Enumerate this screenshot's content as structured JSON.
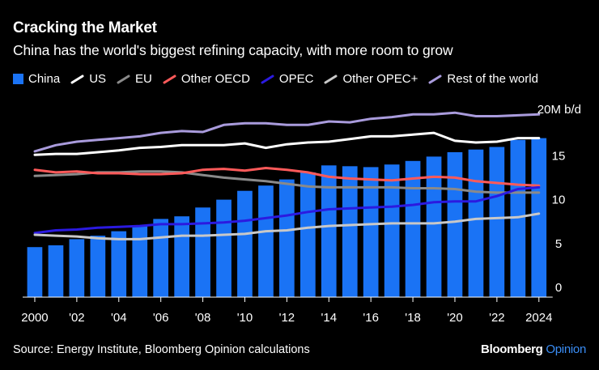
{
  "title": "Cracking the Market",
  "subtitle": "China has the world's biggest refining capacity, with more room to grow",
  "source": "Source: Energy Institute, Bloomberg Opinion calculations",
  "brand": {
    "name": "Bloomberg",
    "suffix": "Opinion"
  },
  "chart_data": {
    "type": "bar+line",
    "unit_label": "20M b/d",
    "ylim": [
      0,
      20
    ],
    "y_ticks": [
      {
        "value": 0,
        "label": "0"
      },
      {
        "value": 5,
        "label": "5"
      },
      {
        "value": 10,
        "label": "10"
      },
      {
        "value": 15,
        "label": "15"
      },
      {
        "value": 20,
        "label": "20M b/d"
      }
    ],
    "x": [
      2000,
      2001,
      2002,
      2003,
      2004,
      2005,
      2006,
      2007,
      2008,
      2009,
      2010,
      2011,
      2012,
      2013,
      2014,
      2015,
      2016,
      2017,
      2018,
      2019,
      2020,
      2021,
      2022,
      2023,
      2024
    ],
    "x_ticks": [
      {
        "value": 2000,
        "label": "2000"
      },
      {
        "value": 2002,
        "label": "'02"
      },
      {
        "value": 2004,
        "label": "'04"
      },
      {
        "value": 2006,
        "label": "'06"
      },
      {
        "value": 2008,
        "label": "'08"
      },
      {
        "value": 2010,
        "label": "'10"
      },
      {
        "value": 2012,
        "label": "'12"
      },
      {
        "value": 2014,
        "label": "'14"
      },
      {
        "value": 2016,
        "label": "'16"
      },
      {
        "value": 2018,
        "label": "'18"
      },
      {
        "value": 2020,
        "label": "'20"
      },
      {
        "value": 2022,
        "label": "'22"
      },
      {
        "value": 2024,
        "label": "2024"
      }
    ],
    "bars": {
      "name": "China",
      "color": "#1a73f5",
      "values": [
        5.7,
        5.9,
        6.6,
        7.0,
        7.5,
        8.2,
        8.9,
        9.2,
        10.2,
        11.1,
        12.1,
        12.7,
        13.4,
        14.2,
        15.0,
        14.9,
        14.8,
        15.1,
        15.5,
        16.0,
        16.5,
        16.8,
        17.1,
        17.9,
        18.1
      ]
    },
    "series": [
      {
        "name": "US",
        "color": "#ffffff",
        "legend_style": "line",
        "values": [
          16.2,
          16.3,
          16.3,
          16.5,
          16.7,
          17.0,
          17.1,
          17.3,
          17.3,
          17.3,
          17.5,
          17.0,
          17.4,
          17.6,
          17.7,
          18.0,
          18.3,
          18.3,
          18.5,
          18.7,
          17.8,
          17.6,
          17.7,
          18.1,
          18.1
        ]
      },
      {
        "name": "EU",
        "color": "#8a8a8a",
        "legend_style": "line",
        "values": [
          13.8,
          13.9,
          14.0,
          14.2,
          14.2,
          14.3,
          14.3,
          14.2,
          13.9,
          13.6,
          13.4,
          13.2,
          12.9,
          12.6,
          12.5,
          12.5,
          12.5,
          12.5,
          12.4,
          12.4,
          12.3,
          12.0,
          11.9,
          11.9,
          11.9
        ]
      },
      {
        "name": "Other OECD",
        "color": "#ff5a5a",
        "legend_style": "line",
        "values": [
          14.5,
          14.2,
          14.3,
          14.1,
          14.1,
          14.0,
          14.0,
          14.1,
          14.5,
          14.6,
          14.4,
          14.7,
          14.5,
          14.2,
          13.7,
          13.5,
          13.4,
          13.3,
          13.5,
          13.7,
          13.6,
          13.2,
          13.0,
          12.8,
          12.7
        ]
      },
      {
        "name": "OPEC",
        "color": "#2b1ae0",
        "legend_style": "line",
        "values": [
          7.3,
          7.6,
          7.7,
          7.9,
          8.0,
          8.1,
          8.3,
          8.3,
          8.4,
          8.5,
          8.7,
          9.0,
          9.3,
          9.7,
          10.0,
          10.1,
          10.2,
          10.3,
          10.5,
          10.8,
          10.9,
          10.9,
          11.5,
          12.3,
          12.5
        ]
      },
      {
        "name": "Other OPEC+",
        "color": "#c8c8c8",
        "legend_style": "line",
        "values": [
          7.1,
          7.0,
          6.9,
          6.7,
          6.6,
          6.6,
          6.8,
          7.0,
          7.0,
          7.1,
          7.2,
          7.5,
          7.6,
          7.9,
          8.1,
          8.2,
          8.3,
          8.4,
          8.4,
          8.4,
          8.6,
          8.9,
          9.0,
          9.1,
          9.5
        ]
      },
      {
        "name": "Rest of the world",
        "color": "#a99bdc",
        "legend_style": "line",
        "values": [
          16.6,
          17.3,
          17.7,
          17.9,
          18.1,
          18.3,
          18.7,
          18.9,
          18.8,
          19.6,
          19.8,
          19.8,
          19.6,
          19.6,
          20.0,
          19.9,
          20.3,
          20.5,
          20.8,
          20.8,
          21.0,
          20.6,
          20.6,
          20.7,
          20.8
        ]
      }
    ]
  }
}
